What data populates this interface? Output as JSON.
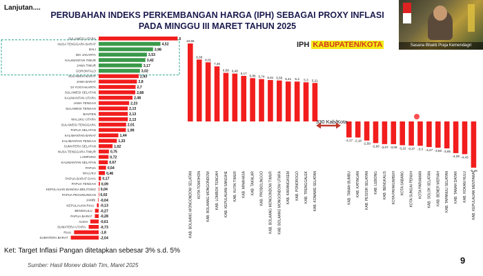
{
  "header": {
    "lanjutan": "Lanjutan....",
    "title_line1": "PERUBAHAN INDEKS PERKEMBANGAN HARGA (IPH) SEBAGAI PROXY INFLASI",
    "title_line2": "PADA MINGGU III MARET TAHUN 2025"
  },
  "video": {
    "caption": "Sasana Bhakti Praja Kemendagri"
  },
  "iph_label": {
    "prefix": "IPH ",
    "highlight": "KABUPATEN/KOTA"
  },
  "arrow_label": "330 Kab/Kota",
  "note": "Ket: Target Inflasi Pangan ditetapkan sebesar 3% s.d. 5%",
  "source": "Sumber: Hasil Monev  diolah Tim, Maret 2025",
  "page_number": "9",
  "colors": {
    "red": "#f21d1d",
    "green": "#3a9a4a",
    "highlight": "#f4ea18",
    "dashed_box": "#2aa08a"
  },
  "chart_data": [
    {
      "type": "bar",
      "orientation": "horizontal",
      "categories": [
        "SULAWESI UTARA",
        "NUSA TENGGARA BARAT",
        "BALI",
        "DKI JAKARTA",
        "KALIMANTAN TIMUR",
        "JAWA TIMUR",
        "GORONTALO",
        "SULAWESI BARAT",
        "JAWA BARAT",
        "DI YOGYAKARTA",
        "SULAWESI SELATAN",
        "KALIMANTAN UTARA",
        "JAWA TENGAH",
        "SULAWESI TENGAH",
        "BANTEN",
        "MALUKU UTARA",
        "SULAWESI TENGGARA",
        "PAPUA SELATAN",
        "KALIMANTAN BARAT",
        "KALIMANTAN TENGAH",
        "SUMATERA SELATAN",
        "NUSA TENGGARA TIMUR",
        "LAMPUNG",
        "KALIMANTAN SELATAN",
        "PAPUA",
        "MALUKU",
        "PAPUA BARAT DAYA",
        "PAPUA TENGAH",
        "KEPULAUAN BANGKA BELITUNG",
        "PAPUA PEGUNUNGAN",
        "JAMBI",
        "KEPULAUAN RIAU",
        "BENGKULU",
        "PAPUA BARAT",
        "ACEH",
        "SUMATERA UTARA",
        "RIAU",
        "SUMATERA BARAT"
      ],
      "values": [
        5.78,
        4.52,
        3.98,
        3.53,
        3.42,
        3.17,
        3.02,
        2.93,
        2.8,
        2.7,
        2.68,
        2.48,
        2.23,
        2.13,
        2.13,
        2.13,
        2.01,
        1.99,
        1.44,
        1.33,
        1.02,
        0.75,
        0.72,
        0.67,
        0.54,
        0.46,
        0.17,
        0.09,
        0.04,
        0.02,
        -0.04,
        -0.13,
        -0.27,
        -0.28,
        -0.61,
        -0.73,
        -1.8,
        -2.04
      ],
      "value_labels": [
        "5,78",
        "4,52",
        "3,98",
        "3,53",
        "3,42",
        "3,17",
        "3,02",
        "2,93",
        "2,8",
        "2,7",
        "2,68",
        "2,48",
        "2,23",
        "2,13",
        "2,13",
        "2,13",
        "2,01",
        "1,99",
        "1,44",
        "1,33",
        "1,02",
        "0,75",
        "0,72",
        "0,67",
        "0,54",
        "0,46",
        "0,17",
        "0,09",
        "0,04",
        "0,02",
        "-0,04",
        "-0,13",
        "-0,27",
        "-0,28",
        "-0,61",
        "-0,73",
        "-1,8",
        "-2,04"
      ],
      "highlighted": [
        1,
        2,
        3,
        4,
        5,
        6
      ]
    },
    {
      "type": "bar",
      "orientation": "vertical",
      "title": "IPH KABUPATEN/KOTA",
      "categories": [
        "KAB. BOLAANG MONGONDOW SELATAN",
        "KOTA TOMOHON",
        "KAB. BOLAANG MONGONDOW",
        "KAB. LOMBOK TENGAH",
        "KAB. KEPULAUAN SANGIHE",
        "KAB. KUTAI TIMUR",
        "KAB. MINAHASA",
        "KAB. TAKALAR",
        "KAB. PROBOLINGGO",
        "KAB. BOLAANG MONGONDOW TIMUR",
        "KAB. BOLAANG MONGONDOW UTARA",
        "KAB. KARANGASEM",
        "KAB. PONOROGO",
        "KAB. TRENGGALEK",
        "KAB. KONAWE SELATAN",
        "KAB. TANAH BUMBU",
        "KAB. KATINGAN",
        "KAB. PESISIR SELATAN",
        "KAB. LEBONG",
        "KAB. BENGKALIS",
        "KOTA PAYAKUMBUH",
        "KOTA SABANG",
        "KOTA SUNGAI PENUH",
        "KOTA PARIAMAN",
        "KAB. SOLOK SELATAN",
        "KAB. BENER MERIAH",
        "KAB. TAPANULI SELATAN",
        "KAB. TANAH DATAR",
        "KAB. ROKAN HULU",
        "KAB. KEPULAUAN MENTAWAI"
      ],
      "values": [
        10.56,
        8.38,
        8.01,
        7.46,
        6.58,
        6.48,
        6.17,
        5.86,
        5.74,
        5.61,
        5.55,
        5.41,
        5.4,
        5.3,
        5.21,
        -2.17,
        -2.18,
        -2.59,
        -2.93,
        -3.07,
        -3.08,
        -3.22,
        -3.27,
        -3.3,
        -3.47,
        -3.56,
        -3.65,
        -4.29,
        -4.43,
        -6.26
      ],
      "value_labels": [
        "10,56",
        "8,38",
        "8,01",
        "7,46",
        "6,58",
        "6,48",
        "6,17",
        "5,86",
        "5,74",
        "5,61",
        "5,55",
        "5,41",
        "5,4",
        "5,3",
        "5,21",
        "-2,17",
        "-2,18",
        "-2,59",
        "-2,93",
        "-3,07",
        "-3,08",
        "-3,22",
        "-3,27",
        "-3,3",
        "-3,47",
        "-3,56",
        "-3,65",
        "-4,29",
        "-4,43",
        "-6,26"
      ]
    }
  ]
}
